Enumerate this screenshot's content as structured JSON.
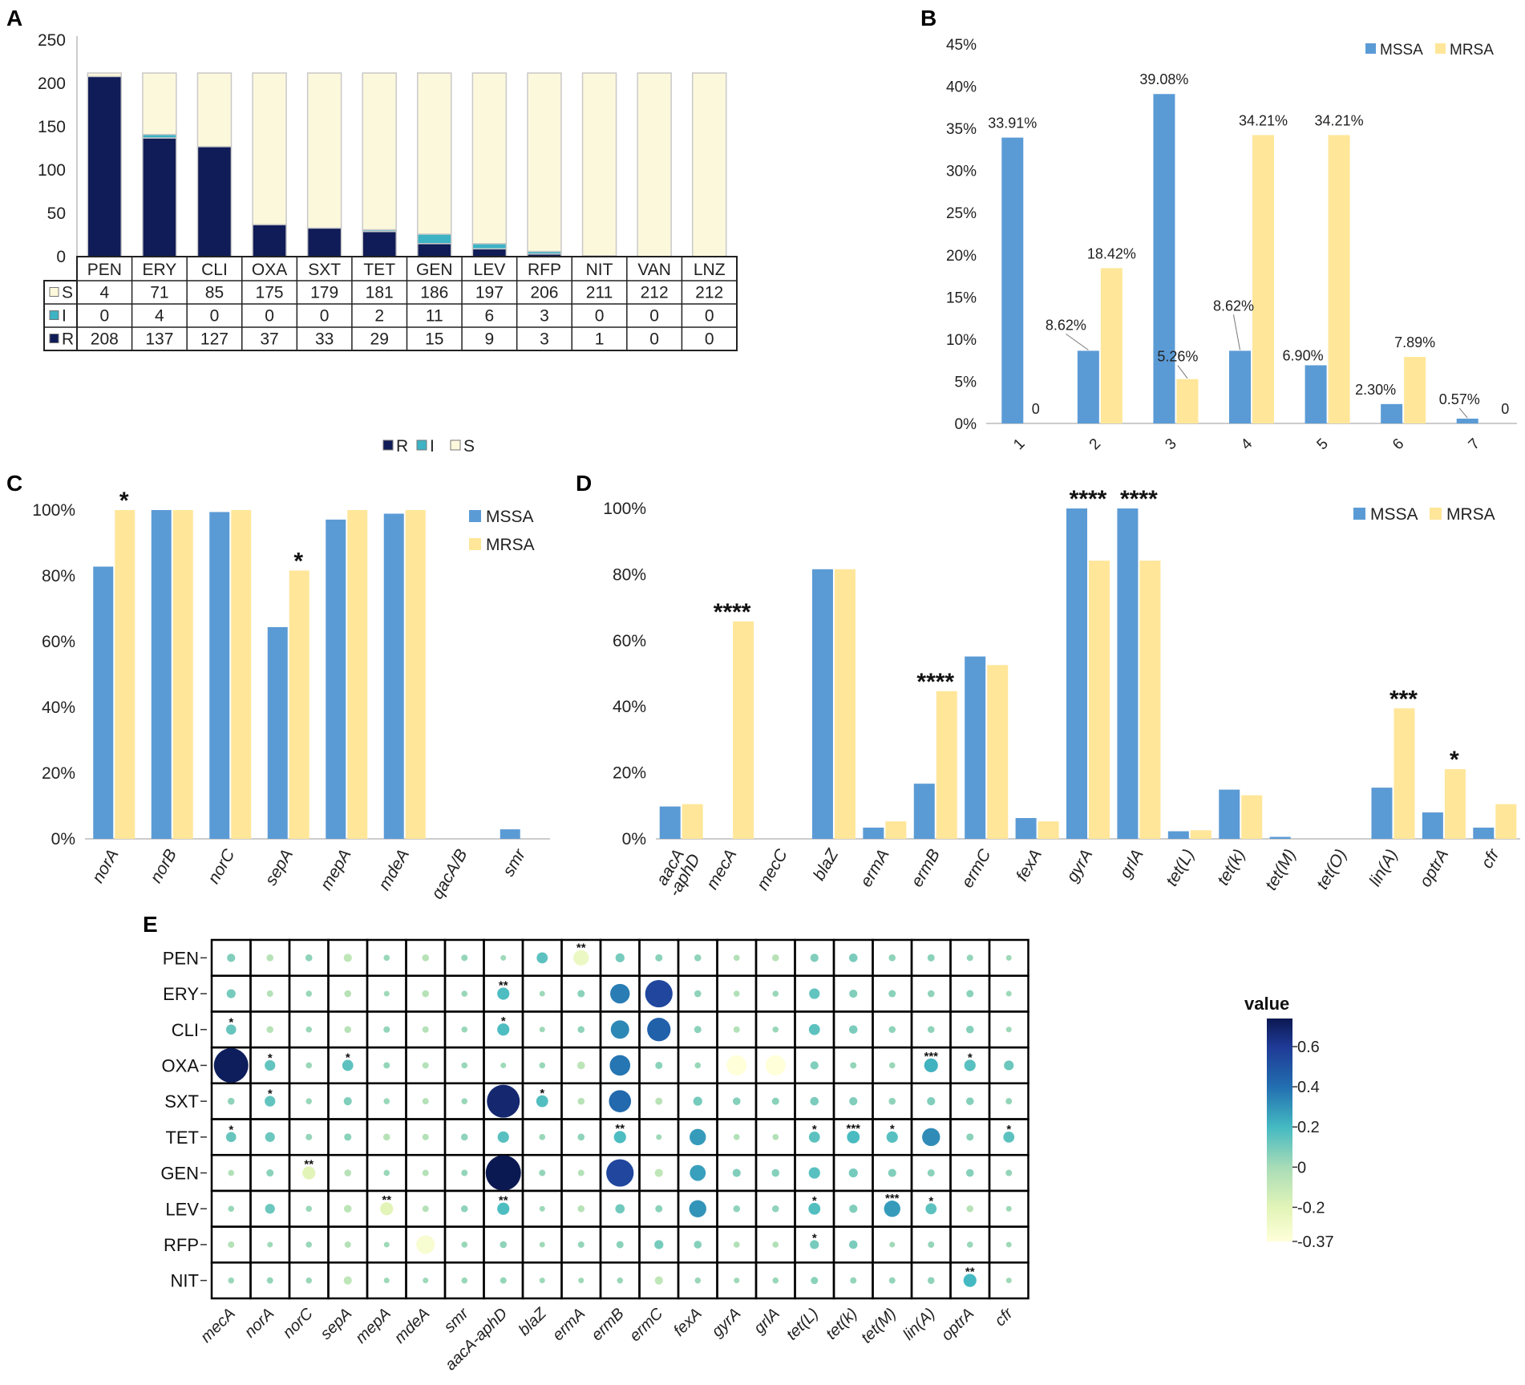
{
  "panels": {
    "A": "A",
    "B": "B",
    "C": "C",
    "D": "D",
    "E": "E"
  },
  "colors": {
    "R": "#101c57",
    "I": "#3db3c4",
    "S": "#fcf8dc",
    "MSSA": "#5b9bd5",
    "MRSA": "#ffe699"
  },
  "chart_data": [
    {
      "id": "A",
      "type": "bar",
      "stacked": true,
      "categories": [
        "PEN",
        "ERY",
        "CLI",
        "OXA",
        "SXT",
        "TET",
        "GEN",
        "LEV",
        "RFP",
        "NIT",
        "VAN",
        "LNZ"
      ],
      "yticks": [
        "0",
        "50",
        "100",
        "150",
        "200",
        "250"
      ],
      "ylim": [
        0,
        250
      ],
      "series": [
        {
          "name": "R",
          "values": [
            208,
            137,
            127,
            37,
            33,
            29,
            15,
            9,
            3,
            1,
            0,
            0
          ]
        },
        {
          "name": "I",
          "values": [
            0,
            4,
            0,
            0,
            0,
            2,
            11,
            6,
            3,
            0,
            0,
            0
          ]
        },
        {
          "name": "S",
          "values": [
            4,
            71,
            85,
            175,
            179,
            181,
            186,
            197,
            206,
            211,
            212,
            212
          ]
        }
      ],
      "table_rows": [
        "S",
        "I",
        "R"
      ],
      "legend": [
        "R",
        "I",
        "S"
      ]
    },
    {
      "id": "B",
      "type": "bar",
      "categories": [
        "1",
        "2",
        "3",
        "4",
        "5",
        "6",
        "7"
      ],
      "yticks": [
        "0%",
        "5%",
        "10%",
        "15%",
        "20%",
        "25%",
        "30%",
        "35%",
        "40%",
        "45%"
      ],
      "ylim": [
        0,
        45
      ],
      "series": [
        {
          "name": "MSSA",
          "values": [
            33.91,
            8.62,
            39.08,
            8.62,
            6.9,
            2.3,
            0.57
          ],
          "labels": [
            "33.91%",
            "8.62%",
            "39.08%",
            "8.62%",
            "6.90%",
            "2.30%",
            "0.57%"
          ]
        },
        {
          "name": "MRSA",
          "values": [
            0,
            18.42,
            5.26,
            34.21,
            34.21,
            7.89,
            0
          ],
          "labels": [
            "0",
            "18.42%",
            "5.26%",
            "34.21%",
            "34.21%",
            "7.89%",
            "0"
          ]
        }
      ],
      "legend": [
        "MSSA",
        "MRSA"
      ]
    },
    {
      "id": "C",
      "type": "bar",
      "categories": [
        "norA",
        "norB",
        "norC",
        "sepA",
        "mepA",
        "mdeA",
        "qacA/B",
        "smr"
      ],
      "yticks": [
        "0%",
        "20%",
        "40%",
        "60%",
        "80%",
        "100%"
      ],
      "ylim": [
        0,
        100
      ],
      "series": [
        {
          "name": "MSSA",
          "values": [
            82.8,
            100,
            99.4,
            64.4,
            97.1,
            98.9,
            0,
            2.9
          ]
        },
        {
          "name": "MRSA",
          "values": [
            100,
            100,
            100,
            81.6,
            100,
            100,
            0,
            0
          ]
        }
      ],
      "significance": [
        "*",
        "",
        "",
        "*",
        "",
        "",
        "",
        ""
      ],
      "legend": [
        "MSSA",
        "MRSA"
      ]
    },
    {
      "id": "D",
      "type": "bar",
      "categories": [
        "aacA\n-aphD",
        "mecA",
        "mecC",
        "blaZ",
        "ermA",
        "ermB",
        "ermC",
        "fexA",
        "gyrA",
        "grlA",
        "tet(L)",
        "tet(k)",
        "tet(M)",
        "tet(O)",
        "lin(A)",
        "optrA",
        "cfr"
      ],
      "yticks": [
        "0%",
        "20%",
        "40%",
        "60%",
        "80%",
        "100%"
      ],
      "ylim": [
        0,
        100
      ],
      "series": [
        {
          "name": "MSSA",
          "values": [
            9.8,
            0,
            0,
            81.6,
            3.4,
            16.7,
            55.2,
            6.3,
            100,
            100,
            2.3,
            14.9,
            0.6,
            0,
            15.5,
            8.0,
            3.4
          ]
        },
        {
          "name": "MRSA",
          "values": [
            10.5,
            65.8,
            0,
            81.6,
            5.3,
            44.7,
            52.6,
            5.3,
            84.2,
            84.2,
            2.6,
            13.2,
            0,
            0,
            39.5,
            21.1,
            10.5
          ]
        }
      ],
      "significance": [
        "",
        "****",
        "",
        "",
        "",
        "****",
        "",
        "",
        "****",
        "****",
        "",
        "",
        "",
        "",
        "***",
        "*",
        ""
      ],
      "legend": [
        "MSSA",
        "MRSA"
      ]
    },
    {
      "id": "E",
      "type": "heatmap",
      "rows": [
        "PEN",
        "ERY",
        "CLI",
        "OXA",
        "SXT",
        "TET",
        "GEN",
        "LEV",
        "RFP",
        "NIT"
      ],
      "cols": [
        "mecA",
        "norA",
        "norC",
        "sepA",
        "mepA",
        "mdeA",
        "smr",
        "aacA-aphD",
        "blaZ",
        "ermA",
        "ermB",
        "ermC",
        "fexA",
        "gyrA",
        "grlA",
        "tet(L)",
        "tet(k)",
        "tet(M)",
        "lin(A)",
        "optrA",
        "cfr"
      ],
      "values": [
        [
          0.08,
          -0.05,
          0.05,
          -0.08,
          0.03,
          -0.05,
          0.04,
          0.02,
          0.15,
          -0.26,
          0.1,
          0.06,
          0.05,
          -0.03,
          -0.05,
          0.08,
          0.09,
          0.05,
          0.06,
          0.04,
          0.02
        ],
        [
          0.1,
          -0.04,
          0.03,
          -0.05,
          0.02,
          -0.05,
          0.03,
          0.18,
          0.02,
          0.06,
          0.36,
          0.55,
          0.05,
          -0.03,
          0.03,
          0.14,
          0.08,
          0.06,
          0.05,
          0.06,
          0.02
        ],
        [
          0.13,
          -0.05,
          0.03,
          -0.05,
          0.04,
          -0.04,
          0.03,
          0.18,
          0.02,
          0.05,
          0.33,
          0.45,
          0.06,
          -0.04,
          0.03,
          0.15,
          0.09,
          0.05,
          0.05,
          0.07,
          0.02
        ],
        [
          0.72,
          0.14,
          0.03,
          0.15,
          0.04,
          -0.04,
          0.03,
          0.02,
          0.03,
          -0.07,
          0.38,
          0.06,
          0.03,
          -0.37,
          -0.37,
          0.08,
          0.04,
          0.03,
          0.22,
          0.16,
          0.12
        ],
        [
          0.05,
          0.14,
          0.03,
          0.08,
          0.03,
          -0.04,
          0.03,
          0.68,
          0.17,
          -0.05,
          0.42,
          -0.06,
          0.1,
          0.07,
          0.06,
          0.09,
          0.08,
          0.05,
          0.08,
          0.07,
          0.04
        ],
        [
          0.13,
          0.12,
          0.04,
          0.06,
          -0.05,
          -0.04,
          0.05,
          0.16,
          0.03,
          0.05,
          0.18,
          0.02,
          0.28,
          -0.03,
          -0.03,
          0.15,
          0.19,
          0.16,
          0.32,
          0.06,
          0.15
        ],
        [
          -0.03,
          0.06,
          -0.2,
          -0.05,
          0.03,
          -0.04,
          0.04,
          0.74,
          0.04,
          -0.04,
          0.55,
          -0.08,
          0.27,
          0.08,
          0.07,
          0.16,
          0.1,
          0.08,
          0.06,
          0.07,
          0.04
        ],
        [
          0.03,
          0.12,
          0.03,
          -0.07,
          -0.2,
          -0.04,
          0.05,
          0.18,
          0.02,
          -0.05,
          0.11,
          0.06,
          0.3,
          0.05,
          0.05,
          0.17,
          0.08,
          0.28,
          0.15,
          -0.05,
          0.02
        ],
        [
          -0.04,
          0.02,
          0.03,
          -0.04,
          0.02,
          -0.33,
          0.03,
          0.05,
          0.02,
          0.04,
          0.06,
          0.1,
          0.07,
          -0.03,
          -0.03,
          0.1,
          0.09,
          0.02,
          0.04,
          0.03,
          0.02
        ],
        [
          0.03,
          0.04,
          0.03,
          -0.08,
          0.02,
          0.02,
          0.03,
          0.04,
          0.02,
          0.02,
          0.03,
          -0.08,
          0.03,
          0.02,
          0.03,
          0.06,
          0.04,
          0.04,
          0.05,
          0.2,
          0.02
        ]
      ],
      "stars": [
        [
          "",
          "",
          "",
          "",
          "",
          "",
          "",
          "",
          "",
          "**",
          "",
          "",
          "",
          "",
          "",
          "",
          "",
          "",
          "",
          "",
          ""
        ],
        [
          "",
          "",
          "",
          "",
          "",
          "",
          "",
          "**",
          "",
          "",
          "",
          "",
          "",
          "",
          "",
          "",
          "",
          "",
          "",
          "",
          ""
        ],
        [
          "*",
          "",
          "",
          "",
          "",
          "",
          "",
          "*",
          "",
          "",
          "",
          "",
          "",
          "",
          "",
          "",
          "",
          "",
          "",
          "",
          ""
        ],
        [
          "",
          "*",
          "",
          "*",
          "",
          "",
          "",
          "",
          "",
          "",
          "",
          "",
          "",
          "",
          "",
          "",
          "",
          "",
          "***",
          "*",
          ""
        ],
        [
          "",
          "*",
          "",
          "",
          "",
          "",
          "",
          "",
          "*",
          "",
          "",
          "",
          "",
          "",
          "",
          "",
          "",
          "",
          "",
          "",
          ""
        ],
        [
          "*",
          "",
          "",
          "",
          "",
          "",
          "",
          "",
          "",
          "",
          "**",
          "",
          "",
          "",
          "",
          "*",
          "***",
          "*",
          "",
          "",
          "*"
        ],
        [
          "",
          "",
          "**",
          "",
          "",
          "",
          "",
          "",
          "",
          "",
          "",
          "",
          "",
          "",
          "",
          "",
          "",
          "",
          "",
          "",
          ""
        ],
        [
          "",
          "",
          "",
          "",
          "**",
          "",
          "",
          "**",
          "",
          "",
          "",
          "",
          "",
          "",
          "",
          "*",
          "",
          "***",
          "*",
          "",
          ""
        ],
        [
          "",
          "",
          "",
          "",
          "",
          "",
          "",
          "",
          "",
          "",
          "",
          "",
          "",
          "",
          "",
          "*",
          "",
          "",
          "",
          "",
          ""
        ],
        [
          "",
          "",
          "",
          "",
          "",
          "",
          "",
          "",
          "",
          "",
          "",
          "",
          "",
          "",
          "",
          "",
          "",
          "",
          "",
          "**",
          ""
        ]
      ],
      "vmin": -0.37,
      "vmax": 0.74,
      "colorbar_title": "value",
      "colorbar_ticks": [
        "0.6",
        "0.4",
        "0.2",
        "0",
        "-0.2",
        "-0.37"
      ],
      "colorbar_tick_values": [
        0.6,
        0.4,
        0.2,
        0,
        -0.2,
        -0.37
      ]
    }
  ]
}
